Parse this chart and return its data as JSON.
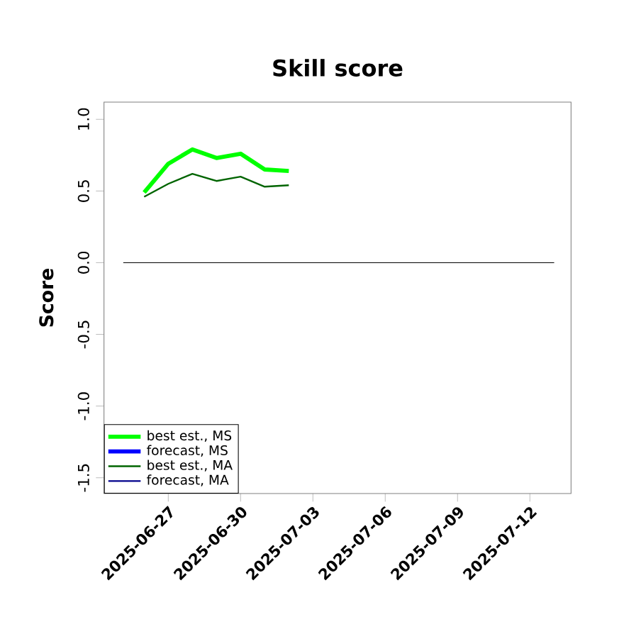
{
  "chart_data": {
    "type": "line",
    "title": "Skill score",
    "ylabel": "Score",
    "x": [
      "2025-06-26",
      "2025-06-27",
      "2025-06-28",
      "2025-06-29",
      "2025-06-30",
      "2025-07-01",
      "2025-07-02"
    ],
    "series": [
      {
        "name": "best est., MS",
        "color": "#00ff00",
        "values": [
          0.49,
          0.69,
          0.79,
          0.73,
          0.76,
          0.65,
          0.64
        ]
      },
      {
        "name": "forecast, MS",
        "color": "#0000ff",
        "values": [
          null,
          null,
          null,
          null,
          null,
          null,
          null
        ]
      },
      {
        "name": "best est., MA",
        "color": "#006400",
        "values": [
          0.46,
          0.55,
          0.62,
          0.57,
          0.6,
          0.53,
          0.54
        ]
      },
      {
        "name": "forecast, MA",
        "color": "#00008b",
        "values": [
          null,
          null,
          null,
          null,
          null,
          null,
          null
        ]
      }
    ],
    "xlim": [
      "2025-06-24T08:00",
      "2025-07-13T17:00"
    ],
    "xticks": [
      "2025-06-27",
      "2025-06-30",
      "2025-07-03",
      "2025-07-06",
      "2025-07-09",
      "2025-07-12"
    ],
    "ylim": [
      -1.61,
      1.12
    ],
    "yticks": [
      -1.5,
      {
        "value": -1.0,
        "label": "-1.0"
      },
      -0.5,
      {
        "value": 0.0,
        "label": "0.0"
      },
      0.5,
      {
        "value": 1.0,
        "label": "1.0"
      }
    ],
    "ref_lines": [
      {
        "axis": "y",
        "value": 0,
        "color": "#000000"
      }
    ],
    "legend": "bottom left",
    "grid": false,
    "marker": "none",
    "line_style": "solid"
  }
}
